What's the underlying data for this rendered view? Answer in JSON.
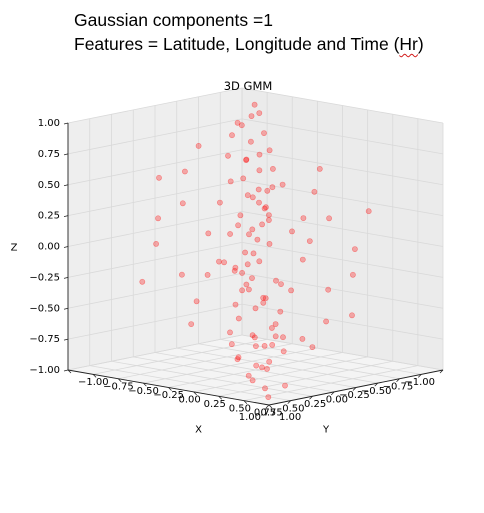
{
  "header": {
    "line1": "Gaussian components =1",
    "line2_prefix": "Features = Latitude, Longitude and Time (",
    "line2_underlined": "Hr",
    "line2_suffix": ")"
  },
  "chart_data": {
    "type": "scatter",
    "projection": "3d",
    "title": "3D GMM",
    "xlabel": "X",
    "ylabel": "Y",
    "zlabel": "Z",
    "xlim": [
      -1.0,
      1.0
    ],
    "ylim": [
      -1.0,
      1.0
    ],
    "zlim": [
      -1.0,
      1.0
    ],
    "x_ticks": [
      "−1.00",
      "−0.75",
      "−0.50",
      "−0.25",
      "0.00",
      "0.25",
      "0.50",
      "0.75",
      "1.00"
    ],
    "y_ticks": [
      "−1.00",
      "−0.75",
      "−0.50",
      "−0.25",
      "0.00",
      "0.25",
      "0.50",
      "0.75",
      "1.00"
    ],
    "z_ticks": [
      "−1.00",
      "−0.75",
      "−0.50",
      "−0.25",
      "0.00",
      "0.25",
      "0.50",
      "0.75",
      "1.00"
    ],
    "grid": true,
    "legend": false,
    "marker_color": "#ff0000",
    "marker_alpha": 0.3,
    "pane_color": "#f2f2f2",
    "grid_color": "#d9d9d9",
    "series": [
      {
        "points": [
          [
            -0.05,
            0.02,
            -1.05
          ],
          [
            0.03,
            -0.04,
            -0.98
          ],
          [
            -0.1,
            0.08,
            -0.9
          ],
          [
            0.08,
            -0.1,
            -0.8
          ],
          [
            -0.02,
            0.01,
            -0.72
          ],
          [
            0.12,
            -0.05,
            -0.65
          ],
          [
            -0.08,
            0.1,
            -0.58
          ],
          [
            0.0,
            0.0,
            -0.5
          ],
          [
            0.05,
            -0.06,
            -0.42
          ],
          [
            -0.04,
            0.03,
            -0.35
          ],
          [
            0.1,
            -0.12,
            -0.28
          ],
          [
            -0.12,
            0.1,
            -0.2
          ],
          [
            0.02,
            -0.02,
            -0.12
          ],
          [
            -0.06,
            0.05,
            -0.05
          ],
          [
            0.07,
            -0.08,
            0.02
          ],
          [
            -0.03,
            0.04,
            0.1
          ],
          [
            0.04,
            -0.03,
            0.18
          ],
          [
            -0.09,
            0.07,
            0.25
          ],
          [
            0.06,
            -0.05,
            0.32
          ],
          [
            -0.01,
            0.02,
            0.4
          ],
          [
            0.09,
            -0.09,
            0.48
          ],
          [
            -0.07,
            0.06,
            0.55
          ],
          [
            0.03,
            -0.01,
            0.62
          ],
          [
            -0.05,
            0.05,
            0.7
          ],
          [
            0.08,
            -0.07,
            0.78
          ],
          [
            -0.02,
            0.03,
            0.85
          ],
          [
            0.05,
            -0.04,
            0.92
          ],
          [
            -0.1,
            0.09,
            1.0
          ],
          [
            0.02,
            -0.02,
            1.08
          ],
          [
            0.0,
            0.01,
            1.15
          ],
          [
            -0.15,
            0.12,
            -0.7
          ],
          [
            0.15,
            -0.12,
            -0.3
          ],
          [
            -0.14,
            0.13,
            0.1
          ],
          [
            0.14,
            -0.15,
            0.5
          ],
          [
            -0.13,
            0.12,
            0.9
          ],
          [
            0.2,
            0.0,
            -0.6
          ],
          [
            -0.2,
            0.0,
            -0.2
          ],
          [
            0.0,
            0.2,
            0.2
          ],
          [
            0.0,
            -0.2,
            0.6
          ],
          [
            0.18,
            0.05,
            -0.9
          ],
          [
            -0.18,
            -0.05,
            0.95
          ],
          [
            0.22,
            0.1,
            0.3
          ],
          [
            -0.22,
            -0.1,
            -0.4
          ],
          [
            0.1,
            0.22,
            0.75
          ],
          [
            -0.1,
            -0.22,
            -0.85
          ],
          [
            0.35,
            0.3,
            0.4
          ],
          [
            0.45,
            0.1,
            0.2
          ],
          [
            0.3,
            0.5,
            -0.1
          ],
          [
            0.55,
            0.35,
            -0.4
          ],
          [
            0.6,
            0.15,
            0.0
          ],
          [
            0.4,
            0.55,
            0.55
          ],
          [
            0.7,
            0.4,
            -0.2
          ],
          [
            0.5,
            0.6,
            0.1
          ],
          [
            0.65,
            0.2,
            0.35
          ],
          [
            0.75,
            0.55,
            -0.55
          ],
          [
            0.25,
            0.65,
            0.0
          ],
          [
            0.8,
            0.3,
            0.2
          ],
          [
            0.45,
            0.75,
            -0.3
          ],
          [
            0.55,
            0.5,
            0.6
          ],
          [
            0.35,
            0.4,
            -0.7
          ],
          [
            -0.4,
            0.35,
            0.6
          ],
          [
            -0.55,
            0.2,
            0.3
          ],
          [
            -0.3,
            0.5,
            -0.2
          ],
          [
            -0.6,
            0.45,
            0.0
          ],
          [
            -0.5,
            0.1,
            -0.5
          ],
          [
            -0.7,
            0.3,
            0.5
          ],
          [
            -0.45,
            0.6,
            0.25
          ],
          [
            -0.65,
            0.55,
            -0.3
          ],
          [
            -0.35,
            0.25,
            0.8
          ],
          [
            -0.25,
            0.45,
            -0.6
          ],
          [
            0.4,
            -0.35,
            -0.6
          ],
          [
            0.55,
            -0.2,
            -0.3
          ],
          [
            0.3,
            -0.5,
            0.2
          ],
          [
            0.6,
            -0.45,
            0.0
          ],
          [
            0.5,
            -0.1,
            0.5
          ],
          [
            0.7,
            -0.3,
            -0.5
          ],
          [
            0.45,
            -0.6,
            -0.25
          ],
          [
            0.65,
            -0.55,
            0.3
          ],
          [
            0.35,
            -0.25,
            -0.8
          ],
          [
            0.25,
            -0.45,
            0.6
          ],
          [
            -0.35,
            -0.3,
            -0.4
          ],
          [
            -0.45,
            -0.1,
            -0.2
          ],
          [
            -0.3,
            -0.5,
            0.1
          ],
          [
            -0.55,
            -0.35,
            0.4
          ],
          [
            -0.6,
            -0.15,
            0.0
          ],
          [
            -0.4,
            -0.55,
            -0.55
          ],
          [
            -0.7,
            -0.4,
            0.2
          ],
          [
            -0.5,
            -0.6,
            -0.1
          ],
          [
            -0.65,
            -0.2,
            -0.35
          ],
          [
            -0.75,
            -0.55,
            0.55
          ],
          [
            0.85,
            0.85,
            -0.75
          ],
          [
            0.9,
            0.7,
            -0.9
          ],
          [
            0.75,
            0.9,
            -0.85
          ],
          [
            0.95,
            0.95,
            -0.95
          ],
          [
            0.8,
            0.6,
            -0.65
          ],
          [
            0.6,
            0.9,
            -0.7
          ],
          [
            0.9,
            0.5,
            -0.55
          ],
          [
            0.5,
            0.85,
            -0.6
          ],
          [
            0.7,
            0.7,
            -0.95
          ],
          [
            0.85,
            0.75,
            -0.5
          ],
          [
            0.05,
            0.05,
            -0.95
          ],
          [
            -0.05,
            -0.05,
            -0.75
          ],
          [
            0.06,
            -0.02,
            -0.45
          ],
          [
            -0.06,
            0.02,
            -0.15
          ],
          [
            0.02,
            0.06,
            0.15
          ],
          [
            -0.02,
            -0.06,
            0.45
          ],
          [
            0.04,
            0.0,
            0.75
          ],
          [
            -0.04,
            0.0,
            1.05
          ],
          [
            0.0,
            0.04,
            -0.25
          ],
          [
            0.0,
            -0.04,
            0.35
          ]
        ]
      }
    ]
  }
}
